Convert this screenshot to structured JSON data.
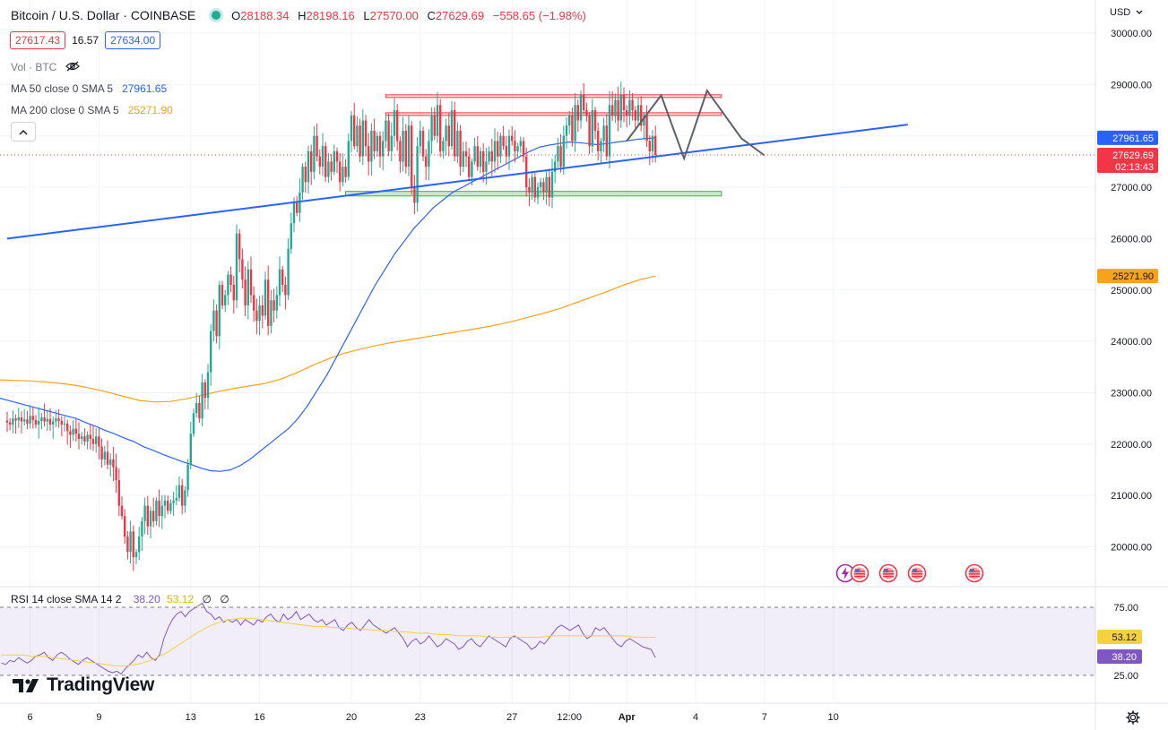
{
  "header": {
    "symbol_title": "Bitcoin / U.S. Dollar · COINBASE",
    "ohlc": {
      "o_label": "O",
      "o_value": "28188.34",
      "h_label": "H",
      "h_value": "28198.16",
      "l_label": "L",
      "l_value": "27570.00",
      "c_label": "C",
      "c_value": "27629.69",
      "change": "−558.65 (−1.98%)"
    },
    "bid": "27617.43",
    "spread": "16.57",
    "ask": "27634.00",
    "currency_menu": "USD"
  },
  "indicators": {
    "volume_label": "Vol · BTC",
    "ma50_label": "MA 50 close 0 SMA 5",
    "ma50_value": "27961.65",
    "ma200_label": "MA 200 close 0 SMA 5",
    "ma200_value": "25271.90",
    "rsi_label": "RSI 14 close SMA 14 2",
    "rsi_value": "38.20",
    "rsi_sma_value": "53.12",
    "rsi_extra_1": "∅",
    "rsi_extra_2": "∅"
  },
  "branding": {
    "logo_text": "TradingView"
  },
  "colors": {
    "up": "#22ab94",
    "down": "#f23645",
    "ma50": "#2962ff",
    "ma200": "#f7a21b",
    "rsi": "#7e57c2",
    "rsi_sma": "#f5d142",
    "trendline": "#2962ff"
  },
  "chart_data": {
    "type": "candlestick",
    "y_axis": {
      "ticks": [
        "30000.00",
        "29000.00",
        "28000.00",
        "27000.00",
        "26000.00",
        "25000.00",
        "24000.00",
        "23000.00",
        "22000.00",
        "21000.00",
        "20000.00"
      ],
      "ylim": [
        19500,
        30300
      ],
      "labels": [
        {
          "name": "ma50",
          "text": "27961.65",
          "value": 27961.65
        },
        {
          "name": "last",
          "text": "27629.69",
          "countdown": "02:13:43",
          "value": 27629.69
        },
        {
          "name": "ma200",
          "text": "25271.90",
          "value": 25271.9
        }
      ]
    },
    "x_axis": {
      "ticks": [
        {
          "label": "6",
          "i": 8
        },
        {
          "label": "9",
          "i": 32
        },
        {
          "label": "13",
          "i": 64
        },
        {
          "label": "16",
          "i": 88
        },
        {
          "label": "20",
          "i": 120
        },
        {
          "label": "23",
          "i": 144
        },
        {
          "label": "27",
          "i": 176
        },
        {
          "label": "12:00",
          "i": 196
        },
        {
          "label": "Apr",
          "i": 216
        },
        {
          "label": "4",
          "i": 240
        },
        {
          "label": "7",
          "i": 264
        },
        {
          "label": "10",
          "i": 288
        }
      ]
    },
    "closes": [
      22420,
      22380,
      22500,
      22460,
      22520,
      22440,
      22480,
      22400,
      22550,
      22470,
      22380,
      22450,
      22520,
      22440,
      22490,
      22380,
      22440,
      22500,
      22450,
      22380,
      22400,
      22250,
      22180,
      22300,
      22200,
      22100,
      22150,
      22050,
      22180,
      22100,
      22000,
      22150,
      21950,
      21700,
      21850,
      21600,
      21700,
      21550,
      21300,
      20800,
      20600,
      20200,
      19900,
      20300,
      19800,
      19900,
      20200,
      20500,
      20800,
      20400,
      20700,
      20500,
      20900,
      20600,
      20800,
      20900,
      20700,
      20850,
      20900,
      20950,
      21200,
      20800,
      21100,
      21600,
      22200,
      22600,
      22800,
      22500,
      23200,
      22900,
      23400,
      24200,
      24600,
      24100,
      25100,
      24700,
      24900,
      25300,
      25100,
      24800,
      26100,
      25600,
      25200,
      24700,
      25400,
      24900,
      24600,
      24400,
      24700,
      24500,
      25200,
      24300,
      24800,
      24600,
      24900,
      25400,
      25100,
      24900,
      25800,
      26300,
      26700,
      26500,
      26900,
      27400,
      27100,
      27700,
      27300,
      28000,
      27600,
      27400,
      27800,
      27200,
      27500,
      27300,
      27700,
      27500,
      27100,
      27400,
      27200,
      27900,
      28400,
      27800,
      28200,
      27600,
      28300,
      27800,
      27500,
      28100,
      27700,
      28000,
      27600,
      27900,
      28300,
      27700,
      28000,
      28500,
      27900,
      27500,
      28100,
      27400,
      28200,
      27000,
      26700,
      27800,
      28100,
      27600,
      27400,
      27900,
      28400,
      28000,
      28600,
      27700,
      27900,
      28200,
      27800,
      28500,
      27600,
      28100,
      27400,
      27700,
      27600,
      27200,
      27500,
      27800,
      27400,
      27700,
      27300,
      27500,
      27700,
      27500,
      27900,
      27600,
      28000,
      27800,
      27600,
      28000,
      27900,
      27700,
      27800,
      27900,
      27600,
      27000,
      26900,
      27200,
      26800,
      27000,
      27100,
      26900,
      27200,
      26800,
      27300,
      27500,
      27800,
      27400,
      28000,
      28200,
      28400,
      27900,
      28600,
      28300,
      28800,
      28500,
      28400,
      27800,
      28500,
      28100,
      27700,
      27900,
      28200,
      27600,
      28600,
      28400,
      28700,
      28300,
      28800,
      28500,
      28400,
      28700,
      28500,
      28300,
      28600,
      28200,
      28400,
      27900,
      27700,
      28000,
      27630
    ],
    "ma50": [
      22900,
      22850,
      22800,
      22750,
      22700,
      22650,
      22600,
      22550,
      22500,
      22420,
      22350,
      22270,
      22200,
      22120,
      22050,
      21950,
      21880,
      21800,
      21730,
      21660,
      21600,
      21530,
      21480,
      21470,
      21500,
      21580,
      21700,
      21850,
      22000,
      22150,
      22300,
      22500,
      22750,
      23050,
      23350,
      23700,
      24050,
      24400,
      24750,
      25100,
      25400,
      25700,
      25950,
      26200,
      26400,
      26600,
      26750,
      26900,
      27000,
      27100,
      27200,
      27300,
      27400,
      27500,
      27600,
      27700,
      27780,
      27820,
      27850,
      27880,
      27870,
      27850,
      27830,
      27850,
      27880,
      27900,
      27930,
      27950,
      27962
    ],
    "ma200": [
      23250,
      23240,
      23230,
      23210,
      23180,
      23140,
      23080,
      23010,
      22930,
      22850,
      22820,
      22830,
      22880,
      22950,
      23020,
      23080,
      23130,
      23180,
      23260,
      23380,
      23520,
      23650,
      23760,
      23840,
      23910,
      23970,
      24020,
      24070,
      24120,
      24170,
      24220,
      24270,
      24330,
      24400,
      24480,
      24560,
      24650,
      24760,
      24870,
      24980,
      25100,
      25200,
      25272
    ],
    "trendline": {
      "start": {
        "i": 0,
        "value": 26000
      },
      "end": {
        "i": 314,
        "value": 28220
      }
    },
    "resistance_zones": [
      {
        "from_i": 132,
        "to_i": 249,
        "low": 28750,
        "high": 28800
      },
      {
        "from_i": 132,
        "to_i": 249,
        "low": 28400,
        "high": 28450
      }
    ],
    "support_zone": {
      "from_i": 118,
      "to_i": 249,
      "low": 26830,
      "high": 26920
    },
    "pattern_path": [
      {
        "i": 216,
        "value": 27900
      },
      {
        "i": 228,
        "value": 28790
      },
      {
        "i": 236,
        "value": 27560
      },
      {
        "i": 244,
        "value": 28880
      },
      {
        "i": 256,
        "value": 27950
      },
      {
        "i": 264,
        "value": 27620
      }
    ],
    "rsi": {
      "ylim": [
        20,
        80
      ],
      "ticks": [
        "75.00",
        "25.00"
      ],
      "band": [
        30,
        70
      ],
      "rsi_values": [
        34,
        33,
        36,
        35,
        38,
        36,
        34,
        36,
        39,
        40,
        42,
        38,
        36,
        40,
        42,
        40,
        37,
        35,
        33,
        36,
        38,
        36,
        34,
        32,
        30,
        28,
        27,
        28,
        26,
        30,
        33,
        36,
        40,
        38,
        42,
        38,
        36,
        40,
        52,
        60,
        66,
        70,
        72,
        68,
        72,
        74,
        76,
        78,
        72,
        70,
        66,
        68,
        64,
        66,
        64,
        66,
        62,
        66,
        64,
        62,
        66,
        64,
        68,
        70,
        66,
        64,
        70,
        66,
        68,
        72,
        66,
        68,
        70,
        66,
        64,
        66,
        62,
        64,
        66,
        60,
        58,
        62,
        64,
        60,
        58,
        62,
        66,
        62,
        60,
        58,
        56,
        58,
        60,
        56,
        52,
        46,
        50,
        52,
        48,
        50,
        54,
        50,
        46,
        48,
        52,
        50,
        48,
        44,
        46,
        50,
        52,
        48,
        46,
        50,
        54,
        52,
        50,
        48,
        46,
        52,
        54,
        52,
        50,
        48,
        44,
        46,
        50,
        48,
        52,
        56,
        60,
        62,
        60,
        58,
        60,
        62,
        56,
        52,
        54,
        60,
        58,
        60,
        56,
        52,
        48,
        46,
        50,
        52,
        50,
        48,
        46,
        45,
        44,
        38
      ],
      "sma_values": [
        40,
        40,
        40,
        39,
        39,
        38,
        37,
        36,
        35,
        34,
        33,
        32,
        32,
        33,
        35,
        38,
        42,
        47,
        52,
        57,
        61,
        64,
        66,
        67,
        67,
        66,
        65,
        64,
        63,
        62,
        61,
        61,
        60,
        60,
        59,
        59,
        58,
        58,
        57,
        57,
        56,
        56,
        55,
        55,
        54,
        54,
        54,
        53,
        53,
        53,
        53,
        53,
        53,
        54,
        54,
        54,
        54,
        54,
        54,
        54,
        54,
        53,
        53,
        53
      ]
    }
  }
}
